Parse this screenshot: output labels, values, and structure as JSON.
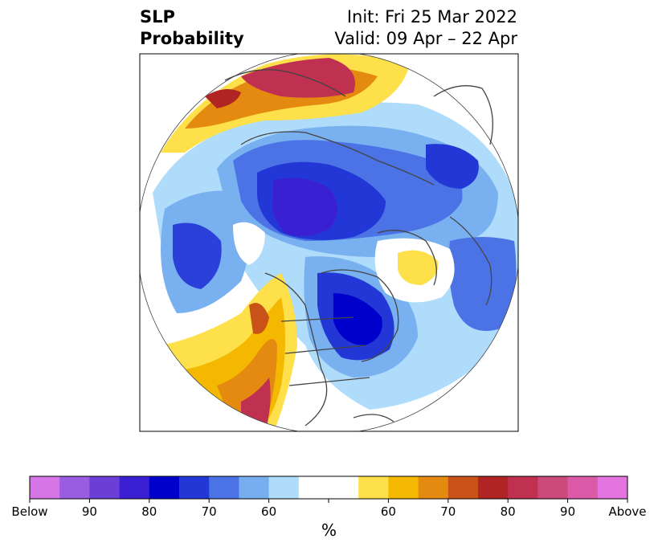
{
  "title": {
    "left_line1": "SLP",
    "left_line2": "Probability",
    "right_line1": "Init: Fri 25 Mar 2022",
    "right_line2": "Valid: 09 Apr – 22 Apr"
  },
  "colorbar": {
    "units": "%",
    "colors": [
      "#d676e6",
      "#9a5ce0",
      "#6c3ed8",
      "#3a1fd3",
      "#0000cc",
      "#2237d6",
      "#4c73e6",
      "#76aef0",
      "#aedcfa",
      "#ffffff",
      "#ffffff",
      "#fde04a",
      "#f4b800",
      "#e48a10",
      "#c85218",
      "#b02424",
      "#c03050",
      "#cc4a7a",
      "#da5aa8",
      "#e474e0"
    ],
    "tick_labels": [
      "Below",
      "90",
      "80",
      "70",
      "60",
      "",
      "60",
      "70",
      "80",
      "90",
      "Above"
    ]
  },
  "colors": {
    "low_strong": "#2a10cc",
    "low_mid": "#2a40d8",
    "low_weak": "#78b0f0",
    "low_faint": "#aedcfa",
    "high_weak": "#fde04a",
    "high_mid": "#e48a10",
    "high_strong": "#c03050"
  }
}
